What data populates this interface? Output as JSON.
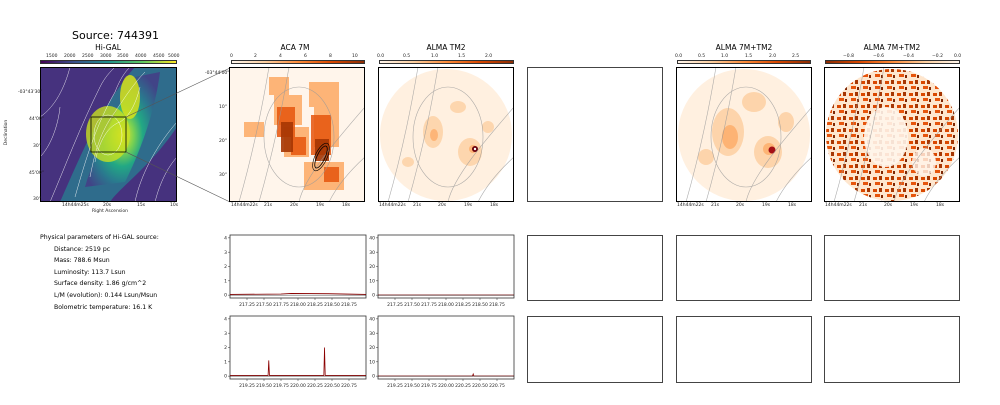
{
  "source_title": "Source: 744391",
  "panels": {
    "higal": {
      "title": "Hi-GAL",
      "colorbar_ticks": [
        "1500",
        "2000",
        "2500",
        "3000",
        "3500",
        "4000",
        "4500",
        "5000"
      ],
      "y_ticks": [
        "-03°43'30\"",
        "44'00\"",
        "30\"",
        "45'00\"",
        "30\""
      ],
      "x_ticks": [
        "14h44m25s",
        "20s",
        "15s",
        "10s"
      ],
      "xlabel": "Right Ascension",
      "ylabel": "Declination"
    },
    "aca7m": {
      "title": "ACA 7M",
      "colorbar_ticks": [
        "0",
        "2",
        "4",
        "6",
        "8",
        "10"
      ],
      "y_ticks": [
        "-03°44'00\"",
        "10\"",
        "20\"",
        "30\""
      ],
      "x_ticks": [
        "14h44m22s",
        "21s",
        "20s",
        "19s",
        "18s"
      ]
    },
    "tm2": {
      "title": "ALMA TM2",
      "colorbar_ticks": [
        "0.0",
        "0.5",
        "1.0",
        "1.5",
        "2.0"
      ],
      "x_ticks": [
        "14h44m22s",
        "21s",
        "20s",
        "19s",
        "18s"
      ]
    },
    "combo": {
      "title": "ALMA 7M+TM2",
      "colorbar_ticks": [
        "0.0",
        "0.5",
        "1.0",
        "1.5",
        "2.0",
        "2.5"
      ],
      "x_ticks": [
        "14h44m22s",
        "21s",
        "20s",
        "19s",
        "18s"
      ]
    },
    "combo_neg": {
      "title": "ALMA 7M+TM2",
      "colorbar_ticks": [
        "−0.8",
        "−0.6",
        "−0.4",
        "−0.2",
        "0.0"
      ],
      "x_ticks": [
        "14h44m22s",
        "21s",
        "20s",
        "19s",
        "18s"
      ]
    }
  },
  "physical": {
    "heading": "Physical parameters of Hi-GAL source:",
    "lines": [
      "Distance: 2519 pc",
      "Mass: 788.6 Msun",
      "Luminosity: 113.7 Lsun",
      "Surface density: 1.86 g/cm^2",
      "L/M (evolution): 0.144 Lsun/Msun",
      "Bolometric temperature: 16.1 K"
    ]
  },
  "chart_data": [
    {
      "type": "line",
      "panel": "aca7m-spectrum-1",
      "x_ticks": [
        "217.25",
        "217.50",
        "217.75",
        "218.00",
        "218.25",
        "218.50",
        "218.75"
      ],
      "y_ticks": [
        "0",
        "1",
        "2",
        "3",
        "4"
      ],
      "xlim": [
        217.0,
        219.0
      ],
      "ylim": [
        -0.2,
        4.2
      ],
      "series": [
        {
          "x": [
            217.0,
            217.75,
            217.9,
            218.45,
            219.0
          ],
          "y": [
            0.05,
            0.08,
            0.12,
            0.1,
            0.05
          ]
        }
      ]
    },
    {
      "type": "line",
      "panel": "tm2-spectrum-1",
      "x_ticks": [
        "217.25",
        "217.50",
        "217.75",
        "218.00",
        "218.25",
        "218.50",
        "218.75"
      ],
      "y_ticks": [
        "0",
        "10",
        "20",
        "30",
        "40"
      ],
      "xlim": [
        217.0,
        219.0
      ],
      "ylim": [
        -2,
        42
      ],
      "series": [
        {
          "x": [
            217.0,
            218.0,
            219.0
          ],
          "y": [
            0.1,
            0.1,
            0.1
          ]
        }
      ]
    },
    {
      "type": "line",
      "panel": "aca7m-spectrum-2",
      "x_ticks": [
        "219.25",
        "219.50",
        "219.75",
        "220.00",
        "220.25",
        "220.50",
        "220.75"
      ],
      "y_ticks": [
        "0",
        "1",
        "2",
        "3",
        "4"
      ],
      "xlim": [
        219.0,
        221.0
      ],
      "ylim": [
        -0.2,
        4.2
      ],
      "series": [
        {
          "x": [
            219.0,
            219.56,
            219.57,
            219.58,
            220.38,
            220.39,
            220.4,
            221.0
          ],
          "y": [
            0.05,
            0.05,
            1.1,
            0.05,
            0.05,
            2.0,
            0.05,
            0.05
          ]
        }
      ]
    },
    {
      "type": "line",
      "panel": "tm2-spectrum-2",
      "x_ticks": [
        "219.25",
        "219.50",
        "219.75",
        "220.00",
        "220.25",
        "220.50",
        "220.75"
      ],
      "y_ticks": [
        "0",
        "10",
        "20",
        "30",
        "40"
      ],
      "xlim": [
        219.0,
        221.0
      ],
      "ylim": [
        -2,
        42
      ],
      "series": [
        {
          "x": [
            219.0,
            220.39,
            220.4,
            220.41,
            221.0
          ],
          "y": [
            0.1,
            0.1,
            1.5,
            0.1,
            0.1
          ]
        }
      ]
    }
  ],
  "colors": {
    "viridis_dark": "#440154",
    "viridis_mid": "#21918c",
    "viridis_light": "#fde725",
    "heat_red": "#b2182b",
    "heat_light": "#fff5eb",
    "spectrum_line": "#8b0000"
  }
}
